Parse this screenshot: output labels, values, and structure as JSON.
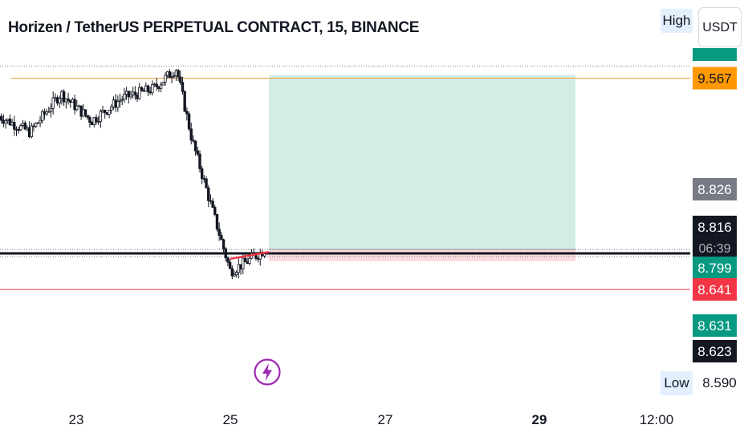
{
  "title": "Horizen / TetherUS PERPETUAL CONTRACT, 15, BINANCE",
  "high_label": "High",
  "currency_label": "USDT",
  "low_label": "Low",
  "low_value": "8.590",
  "timer": "06:39",
  "colors": {
    "candle": "#131722",
    "orange_line": "#f29d38",
    "red_line": "#f23645",
    "black_line": "#131722",
    "target_zone": "#d3ede6",
    "stop_zone": "#fcdadd",
    "bolt": "#9c27b0"
  },
  "price_badges": [
    {
      "label": "9.567",
      "price": 9.567,
      "bg": "#ff9800",
      "fg": "#131722",
      "role": "orange-level"
    },
    {
      "label": "8.826",
      "price": 8.826,
      "bg": "#787b86",
      "fg": "#ffffff",
      "role": "gray-level"
    },
    {
      "label": "8.816",
      "price": 8.816,
      "bg": "#131722",
      "fg": "#ffffff",
      "role": "last-price"
    },
    {
      "label": "8.799",
      "price": 8.799,
      "bg": "#089981",
      "fg": "#ffffff",
      "role": "green-level"
    },
    {
      "label": "8.641",
      "price": 8.641,
      "bg": "#f23645",
      "fg": "#ffffff",
      "role": "red-level"
    },
    {
      "label": "8.631",
      "price": 8.631,
      "bg": "#089981",
      "fg": "#ffffff",
      "role": "green-level-2"
    },
    {
      "label": "8.623",
      "price": 8.623,
      "bg": "#131722",
      "fg": "#ffffff",
      "role": "dark-level"
    }
  ],
  "chart_data": {
    "type": "candlestick",
    "title": "Horizen / TetherUS PERPETUAL CONTRACT, 15, BINANCE",
    "x_ticks": [
      {
        "label": "23",
        "bold": false
      },
      {
        "label": "25",
        "bold": false
      },
      {
        "label": "27",
        "bold": false
      },
      {
        "label": "29",
        "bold": true
      },
      {
        "label": "12:00",
        "bold": false
      }
    ],
    "price_anchor_points": [
      {
        "x": "22.0",
        "y": 9.4
      },
      {
        "x": "22.4",
        "y": 9.33
      },
      {
        "x": "22.8",
        "y": 9.5
      },
      {
        "x": "23.2",
        "y": 9.38
      },
      {
        "x": "23.6",
        "y": 9.48
      },
      {
        "x": "24.0",
        "y": 9.52
      },
      {
        "x": "24.3",
        "y": 9.61
      },
      {
        "x": "24.5",
        "y": 9.3
      },
      {
        "x": "24.8",
        "y": 8.95
      },
      {
        "x": "25.0",
        "y": 8.72
      },
      {
        "x": "25.2",
        "y": 8.76
      },
      {
        "x": "25.45",
        "y": 8.816
      }
    ],
    "horizontal_levels": [
      {
        "price": 9.567,
        "color": "orange"
      },
      {
        "price": 8.799,
        "color": "black",
        "thick": true
      },
      {
        "price": 8.641,
        "color": "red"
      }
    ],
    "dotted_levels": [
      9.62,
      8.816,
      8.785
    ],
    "long_position": {
      "entry": 8.816,
      "target": 9.58,
      "stop": 8.8,
      "x_start": "25.5",
      "x_end": "29.5"
    },
    "trendline": {
      "from": {
        "x": "25.0",
        "y": 8.775
      },
      "to": {
        "x": "25.5",
        "y": 8.805
      },
      "color": "red"
    },
    "y_range": [
      8.55,
      9.68
    ],
    "grid": false,
    "legend": "none"
  }
}
